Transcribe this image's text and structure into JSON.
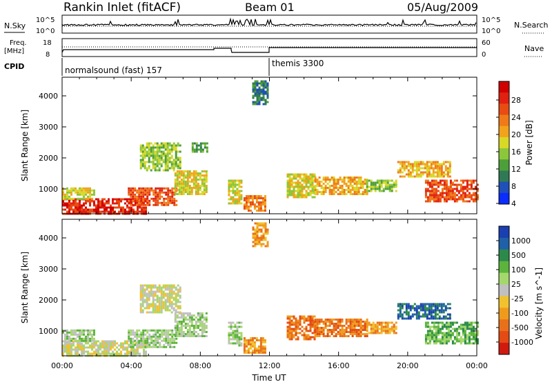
{
  "header": {
    "title": "Rankin Inlet (fitACF)",
    "beam": "Beam 01",
    "date": "05/Aug/2009"
  },
  "noise_panel": {
    "left_label": "N.Sky",
    "right_label": "N.Search",
    "left_ticks": [
      "10^5",
      "10^0"
    ],
    "right_ticks": [
      "10^5",
      "10^0"
    ]
  },
  "freq_panel": {
    "left_label_1": "Freq.",
    "left_label_2": "[MHz]",
    "right_label": "Nave",
    "left_ticks": [
      "18",
      "8"
    ],
    "right_ticks": [
      "60",
      "0"
    ]
  },
  "cpid_panel": {
    "label": "CPID",
    "segments": [
      {
        "start_hour": 0,
        "text": "normalsound (fast) 157"
      },
      {
        "start_hour": 12,
        "text": "themis 3300"
      }
    ]
  },
  "x_axis": {
    "label": "Time UT",
    "ticks": [
      "00:00",
      "04:00",
      "08:00",
      "12:00",
      "16:00",
      "20:00",
      "00:00"
    ]
  },
  "power_colorbar": {
    "label": "Power [dB]",
    "ticks": [
      "28",
      "24",
      "20",
      "16",
      "12",
      "8",
      "4"
    ],
    "colors": [
      "#0b2cff",
      "#1f4fb8",
      "#2f7a55",
      "#4d9f3a",
      "#8cc63a",
      "#d8d826",
      "#f2a31c",
      "#f07a18",
      "#e84c12",
      "#e02010",
      "#d00000"
    ]
  },
  "velocity_colorbar": {
    "label": "Velocity [m s^-1]",
    "ticks": [
      "1000",
      "500",
      "100",
      "25",
      "-25",
      "-100",
      "-500",
      "-1000"
    ],
    "colors": [
      "#1a3fb0",
      "#2060a8",
      "#2b8a4a",
      "#5cb43c",
      "#a4d86c",
      "#c0c0c0",
      "#f1c22e",
      "#f09a1c",
      "#e8701a",
      "#e44a14",
      "#d01a10"
    ]
  },
  "chart_data": [
    {
      "type": "heatmap",
      "title": "Power",
      "xlabel": "Time UT",
      "ylabel": "Slant Range [km]",
      "xlim": [
        0,
        24
      ],
      "ylim": [
        200,
        4600
      ],
      "y_ticks": [
        1000,
        2000,
        3000,
        4000
      ],
      "colorbar": {
        "label": "Power [dB]",
        "range": [
          0,
          30
        ]
      },
      "regions": [
        {
          "t0": 0.0,
          "t1": 4.8,
          "r0": 200,
          "r1": 700,
          "value": 28
        },
        {
          "t0": 0.0,
          "t1": 1.8,
          "r0": 700,
          "r1": 1050,
          "value": 14
        },
        {
          "t0": 3.8,
          "t1": 6.6,
          "r0": 450,
          "r1": 1050,
          "value": 24
        },
        {
          "t0": 6.5,
          "t1": 8.3,
          "r0": 800,
          "r1": 1600,
          "value": 16
        },
        {
          "t0": 4.5,
          "t1": 6.8,
          "r0": 1600,
          "r1": 2500,
          "value": 12
        },
        {
          "t0": 7.5,
          "t1": 8.4,
          "r0": 2200,
          "r1": 2500,
          "value": 8
        },
        {
          "t0": 9.6,
          "t1": 10.4,
          "r0": 500,
          "r1": 1300,
          "value": 16
        },
        {
          "t0": 10.5,
          "t1": 11.8,
          "r0": 300,
          "r1": 800,
          "value": 22
        },
        {
          "t0": 11.0,
          "t1": 11.9,
          "r0": 3700,
          "r1": 4500,
          "value": 6
        },
        {
          "t0": 13.0,
          "t1": 14.6,
          "r0": 700,
          "r1": 1500,
          "value": 16
        },
        {
          "t0": 14.6,
          "t1": 17.6,
          "r0": 800,
          "r1": 1400,
          "value": 19
        },
        {
          "t0": 17.6,
          "t1": 19.3,
          "r0": 900,
          "r1": 1300,
          "value": 12
        },
        {
          "t0": 19.4,
          "t1": 22.5,
          "r0": 1400,
          "r1": 1900,
          "value": 18
        },
        {
          "t0": 21.0,
          "t1": 24.0,
          "r0": 600,
          "r1": 1300,
          "value": 24
        }
      ]
    },
    {
      "type": "heatmap",
      "title": "Velocity",
      "xlabel": "Time UT",
      "ylabel": "Slant Range [km]",
      "xlim": [
        0,
        24
      ],
      "ylim": [
        200,
        4600
      ],
      "y_ticks": [
        1000,
        2000,
        3000,
        4000
      ],
      "colorbar": {
        "label": "Velocity [m s^-1]",
        "range": [
          -1000,
          1000
        ]
      },
      "regions": [
        {
          "t0": 0.0,
          "t1": 4.8,
          "r0": 200,
          "r1": 700,
          "value": 25
        },
        {
          "t0": 0.0,
          "t1": 1.8,
          "r0": 700,
          "r1": 1050,
          "value": 100
        },
        {
          "t0": 3.8,
          "t1": 6.6,
          "r0": 450,
          "r1": 1050,
          "value": 100
        },
        {
          "t0": 6.5,
          "t1": 8.3,
          "r0": 800,
          "r1": 1600,
          "value": 150
        },
        {
          "t0": 4.5,
          "t1": 6.8,
          "r0": 1600,
          "r1": 2500,
          "value": 0
        },
        {
          "t0": 9.6,
          "t1": 10.4,
          "r0": 500,
          "r1": 1300,
          "value": 100
        },
        {
          "t0": 10.5,
          "t1": 11.8,
          "r0": 300,
          "r1": 800,
          "value": -200
        },
        {
          "t0": 11.0,
          "t1": 11.9,
          "r0": 3700,
          "r1": 4500,
          "value": -100
        },
        {
          "t0": 13.0,
          "t1": 14.6,
          "r0": 700,
          "r1": 1500,
          "value": -300
        },
        {
          "t0": 14.6,
          "t1": 17.6,
          "r0": 800,
          "r1": 1400,
          "value": -400
        },
        {
          "t0": 17.6,
          "t1": 19.3,
          "r0": 900,
          "r1": 1300,
          "value": -150
        },
        {
          "t0": 19.4,
          "t1": 22.5,
          "r0": 1400,
          "r1": 1900,
          "value": 700
        },
        {
          "t0": 21.0,
          "t1": 24.0,
          "r0": 600,
          "r1": 1300,
          "value": 300
        }
      ]
    }
  ]
}
